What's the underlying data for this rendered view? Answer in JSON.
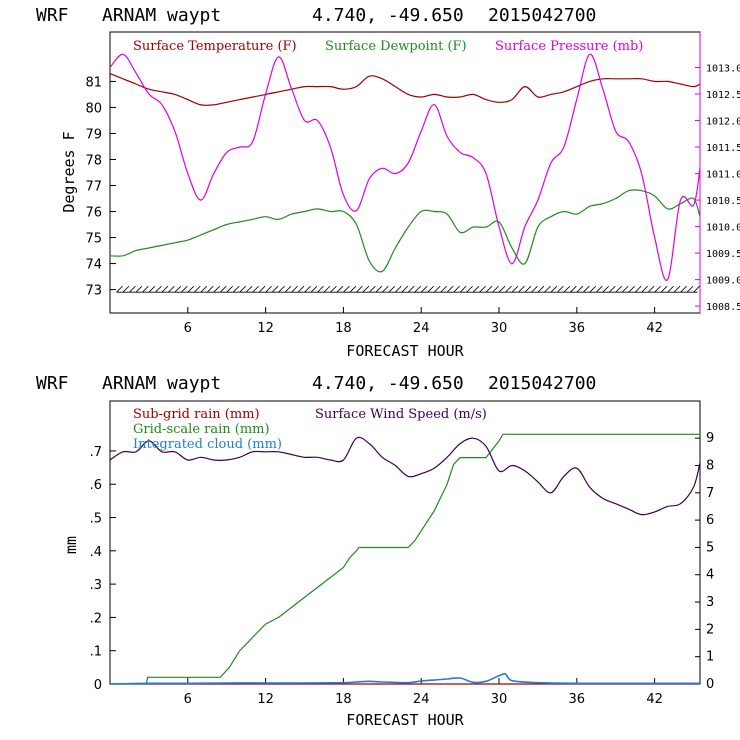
{
  "chart_data": [
    {
      "type": "line",
      "title": {
        "model": "WRF",
        "site": "ARNAM waypt",
        "coords": "4.740, -49.650",
        "date": "2015042700"
      },
      "xlabel": "FORECAST HOUR",
      "ylabel": "Degrees F",
      "x_ticks": [
        6,
        12,
        18,
        24,
        30,
        36,
        42
      ],
      "xlim": [
        0,
        45.5
      ],
      "ylim": [
        72.1,
        82.9
      ],
      "y_ticks": [
        73,
        74,
        75,
        76,
        77,
        78,
        79,
        80,
        81
      ],
      "y2lim": [
        1008.37,
        1013.67
      ],
      "y2_ticks": [
        "1008.5",
        "1009.0",
        "1009.5",
        "1010.0",
        "1010.5",
        "1011.0",
        "1011.5",
        "1012.0",
        "1012.5",
        "1013.0"
      ],
      "colors": {
        "temperature": "#a00000",
        "dewpoint": "#1f8a1f",
        "pressure": "#e000e0",
        "wind_barbs": "#000000"
      },
      "series": [
        {
          "name": "Surface Temperature (F)",
          "axis": "left",
          "x": [
            0,
            1,
            2,
            3,
            4,
            5,
            6,
            7,
            8,
            9,
            10,
            11,
            12,
            13,
            14,
            15,
            16,
            17,
            18,
            19,
            20,
            21,
            22,
            23,
            24,
            25,
            26,
            27,
            28,
            29,
            30,
            31,
            32,
            33,
            34,
            35,
            36,
            37,
            38,
            39,
            40,
            41,
            42,
            43,
            44,
            45,
            45.5
          ],
          "values": [
            81.3,
            81.1,
            80.9,
            80.7,
            80.6,
            80.5,
            80.3,
            80.1,
            80.1,
            80.2,
            80.3,
            80.4,
            80.5,
            80.6,
            80.7,
            80.8,
            80.8,
            80.8,
            80.7,
            80.8,
            81.2,
            81.1,
            80.8,
            80.5,
            80.4,
            80.5,
            80.4,
            80.4,
            80.5,
            80.3,
            80.2,
            80.3,
            80.8,
            80.4,
            80.5,
            80.6,
            80.8,
            81.0,
            81.1,
            81.1,
            81.1,
            81.1,
            81.0,
            81.0,
            80.9,
            80.8,
            80.9
          ]
        },
        {
          "name": "Surface Dewpoint (F)",
          "axis": "left",
          "x": [
            0,
            1,
            2,
            3,
            4,
            5,
            6,
            7,
            8,
            9,
            10,
            11,
            12,
            13,
            14,
            15,
            16,
            17,
            18,
            19,
            20,
            21,
            22,
            23,
            24,
            25,
            26,
            27,
            28,
            29,
            30,
            31,
            32,
            33,
            34,
            35,
            36,
            37,
            38,
            39,
            40,
            41,
            42,
            43,
            44,
            45,
            45.5
          ],
          "values": [
            74.3,
            74.3,
            74.5,
            74.6,
            74.7,
            74.8,
            74.9,
            75.1,
            75.3,
            75.5,
            75.6,
            75.7,
            75.8,
            75.7,
            75.9,
            76.0,
            76.1,
            76.0,
            76.0,
            75.5,
            74.1,
            73.7,
            74.6,
            75.4,
            76.0,
            76.0,
            75.9,
            75.2,
            75.4,
            75.4,
            75.6,
            74.6,
            74.0,
            75.4,
            75.8,
            76.0,
            75.9,
            76.2,
            76.3,
            76.5,
            76.8,
            76.8,
            76.6,
            76.1,
            76.3,
            76.5,
            75.8
          ]
        },
        {
          "name": "Surface Pressure (mb)",
          "axis": "right",
          "x": [
            0,
            1,
            2,
            3,
            4,
            5,
            6,
            7,
            8,
            9,
            10,
            11,
            12,
            13,
            14,
            15,
            16,
            17,
            18,
            19,
            20,
            21,
            22,
            23,
            24,
            25,
            26,
            27,
            28,
            29,
            30,
            31,
            32,
            33,
            34,
            35,
            36,
            37,
            38,
            39,
            40,
            41,
            42,
            43,
            44,
            45,
            45.5
          ],
          "values": [
            1013.0,
            1013.25,
            1012.9,
            1012.5,
            1012.3,
            1011.8,
            1011.0,
            1010.5,
            1011.0,
            1011.4,
            1011.5,
            1011.6,
            1012.5,
            1013.2,
            1012.6,
            1012.0,
            1012.0,
            1011.5,
            1010.6,
            1010.3,
            1010.9,
            1011.1,
            1011.0,
            1011.2,
            1011.8,
            1012.3,
            1011.7,
            1011.4,
            1011.3,
            1011.0,
            1010.0,
            1009.3,
            1010.0,
            1010.5,
            1011.2,
            1011.5,
            1012.4,
            1013.25,
            1012.6,
            1011.8,
            1011.6,
            1011.0,
            1009.8,
            1009.0,
            1010.5,
            1010.4,
            1011.1
          ]
        }
      ],
      "wind_barbs_y": 72.9
    },
    {
      "type": "line",
      "title": {
        "model": "WRF",
        "site": "ARNAM waypt",
        "coords": "4.740, -49.650",
        "date": "2015042700"
      },
      "xlabel": "FORECAST HOUR",
      "ylabel": "mm",
      "x_ticks": [
        6,
        12,
        18,
        24,
        30,
        36,
        42
      ],
      "xlim": [
        0,
        45.5
      ],
      "ylim": [
        0,
        0.85
      ],
      "y_ticks": [
        "0",
        ".1",
        ".2",
        ".3",
        ".4",
        ".5",
        ".6",
        ".7"
      ],
      "y2lim": [
        0,
        10.36
      ],
      "y2_ticks": [
        "0",
        "1",
        "2",
        "3",
        "4",
        "5",
        "6",
        "7",
        "8",
        "9"
      ],
      "colors": {
        "subgrid_rain": "#a00000",
        "grid_rain": "#1f8a1f",
        "cloud": "#1f7fd0",
        "wind_speed": "#3a0050"
      },
      "series": [
        {
          "name": "Sub-grid rain (mm)",
          "axis": "left",
          "x": [
            0,
            45.5
          ],
          "values": [
            0,
            0
          ]
        },
        {
          "name": "Grid-scale rain (mm)",
          "axis": "left",
          "x": [
            0,
            2.8,
            2.9,
            8.5,
            9.2,
            10,
            11,
            12,
            13,
            14,
            15,
            16,
            17,
            18,
            18.5,
            19,
            19.2,
            23,
            23.5,
            24,
            25,
            26,
            26.5,
            27,
            29,
            29.4,
            30,
            30.3,
            35,
            40,
            45.5
          ],
          "values": [
            0,
            0,
            0.02,
            0.02,
            0.05,
            0.1,
            0.14,
            0.18,
            0.2,
            0.23,
            0.26,
            0.29,
            0.32,
            0.35,
            0.38,
            0.4,
            0.41,
            0.41,
            0.43,
            0.46,
            0.52,
            0.6,
            0.66,
            0.68,
            0.68,
            0.7,
            0.73,
            0.75,
            0.75,
            0.75,
            0.75
          ]
        },
        {
          "name": "Integrated cloud (mm)",
          "axis": "left",
          "x": [
            0,
            3,
            6,
            9,
            12,
            15,
            18,
            19,
            20,
            21,
            23,
            24,
            25,
            26,
            27,
            28,
            29,
            30,
            30.5,
            31,
            33,
            36,
            39,
            42,
            45.5
          ],
          "values": [
            0,
            0.002,
            0.002,
            0.003,
            0.003,
            0.003,
            0.004,
            0.006,
            0.008,
            0.006,
            0.004,
            0.009,
            0.012,
            0.015,
            0.018,
            0.005,
            0.008,
            0.025,
            0.03,
            0.01,
            0.004,
            0.002,
            0.002,
            0.002,
            0.002
          ]
        },
        {
          "name": "Surface Wind Speed (m/s)",
          "axis": "right",
          "x": [
            0,
            1,
            2,
            3,
            4,
            5,
            6,
            7,
            8,
            9,
            10,
            11,
            12,
            13,
            14,
            15,
            16,
            17,
            18,
            19,
            20,
            21,
            22,
            23,
            24,
            25,
            26,
            27,
            28,
            29,
            30,
            31,
            32,
            33,
            34,
            35,
            36,
            37,
            38,
            39,
            40,
            41,
            42,
            43,
            44,
            45,
            45.5
          ],
          "values": [
            8.2,
            8.5,
            8.5,
            8.9,
            8.5,
            8.5,
            8.2,
            8.3,
            8.2,
            8.2,
            8.3,
            8.5,
            8.5,
            8.5,
            8.4,
            8.3,
            8.3,
            8.2,
            8.2,
            9.0,
            8.8,
            8.3,
            8.0,
            7.6,
            7.7,
            7.9,
            8.3,
            8.8,
            9.0,
            8.7,
            7.8,
            8.0,
            7.8,
            7.4,
            7.0,
            7.6,
            7.9,
            7.2,
            6.8,
            6.6,
            6.4,
            6.2,
            6.3,
            6.5,
            6.6,
            7.2,
            8.1
          ]
        }
      ]
    }
  ]
}
